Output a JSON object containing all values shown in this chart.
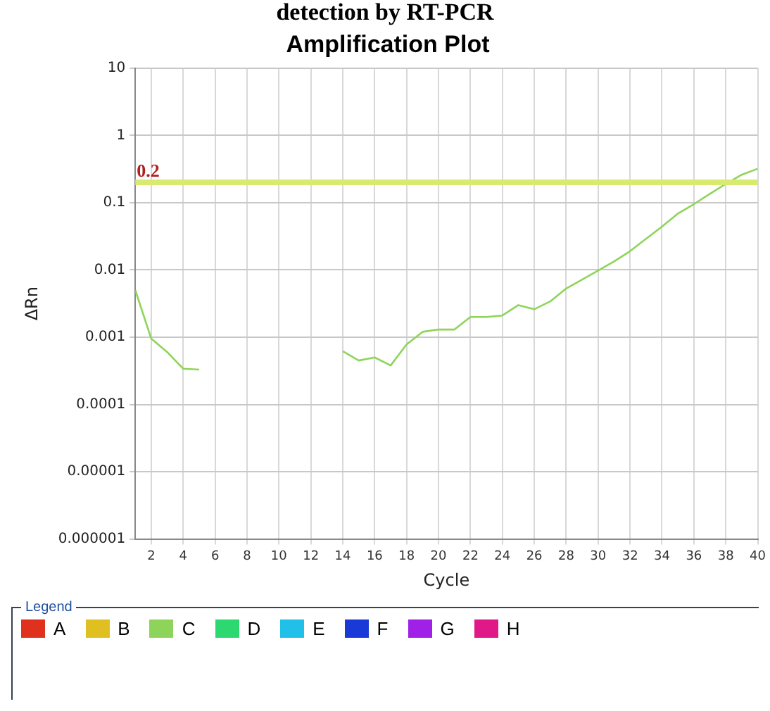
{
  "chart_data": {
    "type": "line",
    "title": "detection by RT-PCR",
    "subtitle": "Amplification Plot",
    "xlabel": "Cycle",
    "ylabel": "ΔRn",
    "legend_title": "Legend",
    "x": [
      1,
      2,
      3,
      4,
      5,
      6,
      7,
      8,
      9,
      10,
      11,
      12,
      13,
      14,
      15,
      16,
      17,
      18,
      19,
      20,
      21,
      22,
      23,
      24,
      25,
      26,
      27,
      28,
      29,
      30,
      31,
      32,
      33,
      34,
      35,
      36,
      37,
      38,
      39,
      40
    ],
    "series": [
      {
        "name": "A",
        "color": "#e0301e",
        "values": [
          null,
          null,
          null,
          null,
          null,
          null,
          null,
          null,
          null,
          null,
          null,
          null,
          null,
          null,
          null,
          null,
          null,
          null,
          null,
          null,
          null,
          null,
          null,
          null,
          null,
          null,
          null,
          null,
          null,
          null,
          null,
          null,
          null,
          null,
          null,
          null,
          null,
          null,
          null,
          null
        ]
      },
      {
        "name": "B",
        "color": "#e0c020",
        "values": [
          null,
          null,
          null,
          null,
          null,
          null,
          null,
          null,
          null,
          null,
          null,
          null,
          null,
          null,
          null,
          null,
          null,
          null,
          null,
          null,
          null,
          null,
          null,
          null,
          null,
          null,
          null,
          null,
          null,
          null,
          null,
          null,
          null,
          null,
          null,
          null,
          null,
          null,
          null,
          null
        ]
      },
      {
        "name": "C",
        "color": "#8fd45a",
        "values": [
          0.005,
          0.00095,
          0.0006,
          0.00034,
          0.00033,
          null,
          null,
          null,
          null,
          null,
          null,
          null,
          null,
          0.00062,
          0.00045,
          0.0005,
          0.00038,
          0.00078,
          0.0012,
          0.0013,
          0.0013,
          0.002,
          0.002,
          0.0021,
          0.003,
          0.0026,
          0.0034,
          0.0053,
          0.0072,
          0.0098,
          0.0134,
          0.019,
          0.029,
          0.044,
          0.069,
          0.095,
          0.135,
          0.19,
          0.26,
          0.32
        ]
      },
      {
        "name": "D",
        "color": "#2ed870",
        "values": [
          null,
          null,
          null,
          null,
          null,
          null,
          null,
          null,
          null,
          null,
          null,
          null,
          null,
          null,
          null,
          null,
          null,
          null,
          null,
          null,
          null,
          null,
          null,
          null,
          null,
          null,
          null,
          null,
          null,
          null,
          null,
          null,
          null,
          null,
          null,
          null,
          null,
          null,
          null,
          null
        ]
      },
      {
        "name": "E",
        "color": "#20c0e8",
        "values": [
          null,
          null,
          null,
          null,
          null,
          null,
          null,
          null,
          null,
          null,
          null,
          null,
          null,
          null,
          null,
          null,
          null,
          null,
          null,
          null,
          null,
          null,
          null,
          null,
          null,
          null,
          null,
          null,
          null,
          null,
          null,
          null,
          null,
          null,
          null,
          null,
          null,
          null,
          null,
          null
        ]
      },
      {
        "name": "F",
        "color": "#1a3ad8",
        "values": [
          null,
          null,
          null,
          null,
          null,
          null,
          null,
          null,
          null,
          null,
          null,
          null,
          null,
          null,
          null,
          null,
          null,
          null,
          null,
          null,
          null,
          null,
          null,
          null,
          null,
          null,
          null,
          null,
          null,
          null,
          null,
          null,
          null,
          null,
          null,
          null,
          null,
          null,
          null,
          null
        ]
      },
      {
        "name": "G",
        "color": "#a020e8",
        "values": [
          null,
          null,
          null,
          null,
          null,
          null,
          null,
          null,
          null,
          null,
          null,
          null,
          null,
          null,
          null,
          null,
          null,
          null,
          null,
          null,
          null,
          null,
          null,
          null,
          null,
          null,
          null,
          null,
          null,
          null,
          null,
          null,
          null,
          null,
          null,
          null,
          null,
          null,
          null,
          null
        ]
      },
      {
        "name": "H",
        "color": "#e01888",
        "values": [
          null,
          null,
          null,
          null,
          null,
          null,
          null,
          null,
          null,
          null,
          null,
          null,
          null,
          null,
          null,
          null,
          null,
          null,
          null,
          null,
          null,
          null,
          null,
          null,
          null,
          null,
          null,
          null,
          null,
          null,
          null,
          null,
          null,
          null,
          null,
          null,
          null,
          null,
          null,
          null
        ]
      }
    ],
    "log": "y",
    "xlim": [
      1,
      40
    ],
    "xticks": [
      2,
      4,
      6,
      8,
      10,
      12,
      14,
      16,
      18,
      20,
      22,
      24,
      26,
      28,
      30,
      32,
      34,
      36,
      38,
      40
    ],
    "ylim": [
      1e-06,
      10
    ],
    "yticks": [
      {
        "value": 1e-06,
        "label": "0.000001"
      },
      {
        "value": 1e-05,
        "label": "0.00001"
      },
      0.0001,
      0.001,
      0.01,
      0.1,
      1,
      10
    ],
    "ref_lines": [
      {
        "axis": "y",
        "value": 0.2,
        "label": "0.2",
        "color": "#d8ea70"
      }
    ],
    "grid": true,
    "legend": "bottom",
    "marker": "none",
    "line_style": "solid"
  }
}
